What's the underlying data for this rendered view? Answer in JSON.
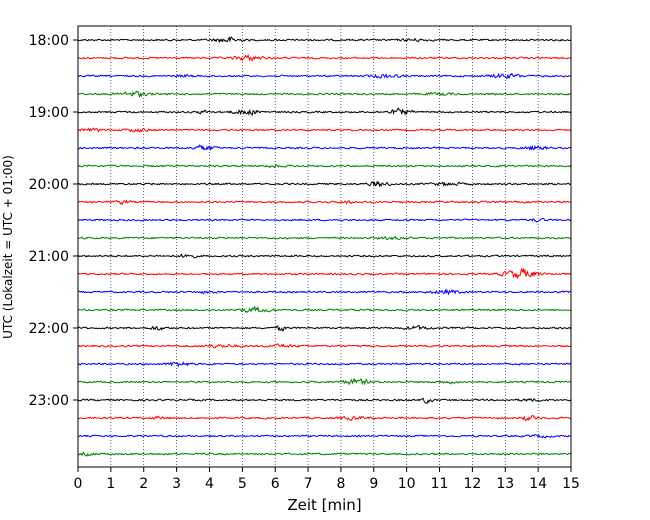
{
  "chart_data": {
    "type": "line",
    "title": "",
    "xlabel": "Zeit  [min]",
    "ylabel": "UTC (Lokalzeit = UTC + 01:00)",
    "xlim": [
      0,
      15
    ],
    "x_ticks": [
      "0",
      "1",
      "2",
      "3",
      "4",
      "5",
      "6",
      "7",
      "8",
      "9",
      "10",
      "11",
      "12",
      "13",
      "14",
      "15"
    ],
    "y_tick_labels": [
      "18:00",
      "19:00",
      "20:00",
      "21:00",
      "22:00",
      "23:00"
    ],
    "grid": "vertical dotted lines at each minute",
    "trace_interval_minutes": 15,
    "start_time": "18:00",
    "end_time": "23:45",
    "color_cycle": [
      "#000000",
      "#ff0000",
      "#0000ff",
      "#008000"
    ],
    "traces": [
      {
        "time": "18:00",
        "color": "#000000"
      },
      {
        "time": "18:15",
        "color": "#ff0000"
      },
      {
        "time": "18:30",
        "color": "#0000ff"
      },
      {
        "time": "18:45",
        "color": "#008000"
      },
      {
        "time": "19:00",
        "color": "#000000"
      },
      {
        "time": "19:15",
        "color": "#ff0000"
      },
      {
        "time": "19:30",
        "color": "#0000ff"
      },
      {
        "time": "19:45",
        "color": "#008000"
      },
      {
        "time": "20:00",
        "color": "#000000"
      },
      {
        "time": "20:15",
        "color": "#ff0000"
      },
      {
        "time": "20:30",
        "color": "#0000ff"
      },
      {
        "time": "20:45",
        "color": "#008000"
      },
      {
        "time": "21:00",
        "color": "#000000"
      },
      {
        "time": "21:15",
        "color": "#ff0000"
      },
      {
        "time": "21:30",
        "color": "#0000ff"
      },
      {
        "time": "21:45",
        "color": "#008000"
      },
      {
        "time": "22:00",
        "color": "#000000"
      },
      {
        "time": "22:15",
        "color": "#ff0000"
      },
      {
        "time": "22:30",
        "color": "#0000ff"
      },
      {
        "time": "22:45",
        "color": "#008000"
      },
      {
        "time": "23:00",
        "color": "#000000"
      },
      {
        "time": "23:15",
        "color": "#ff0000"
      },
      {
        "time": "23:30",
        "color": "#0000ff"
      },
      {
        "time": "23:45",
        "color": "#008000"
      }
    ]
  }
}
